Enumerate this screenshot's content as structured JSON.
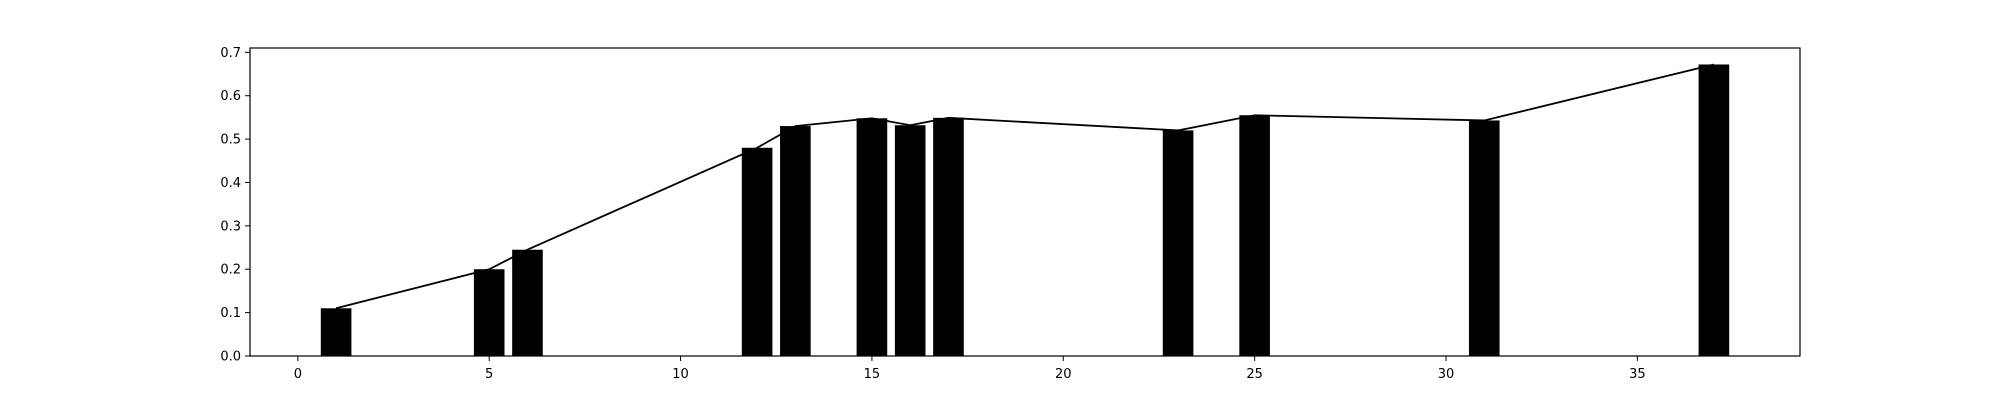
{
  "chart_data": {
    "type": "bar",
    "x": [
      1,
      5,
      6,
      12,
      13,
      15,
      16,
      17,
      23,
      25,
      31,
      37
    ],
    "values": [
      0.11,
      0.2,
      0.245,
      0.48,
      0.53,
      0.548,
      0.532,
      0.549,
      0.52,
      0.555,
      0.543,
      0.672
    ],
    "overlay_line": true,
    "title": "",
    "xlabel": "",
    "ylabel": "",
    "xlim": [
      -1.25,
      39.25
    ],
    "ylim": [
      0,
      0.71
    ],
    "xticks": [
      0,
      5,
      10,
      15,
      20,
      25,
      30,
      35
    ],
    "yticks": [
      0.0,
      0.1,
      0.2,
      0.3,
      0.4,
      0.5,
      0.6,
      0.7
    ],
    "xtick_labels": [
      "0",
      "5",
      "10",
      "15",
      "20",
      "25",
      "30",
      "35"
    ],
    "ytick_labels": [
      "0.0",
      "0.1",
      "0.2",
      "0.3",
      "0.4",
      "0.5",
      "0.6",
      "0.7"
    ],
    "bar_color": "#000000",
    "line_color": "#000000",
    "grid": false,
    "legend": false
  }
}
